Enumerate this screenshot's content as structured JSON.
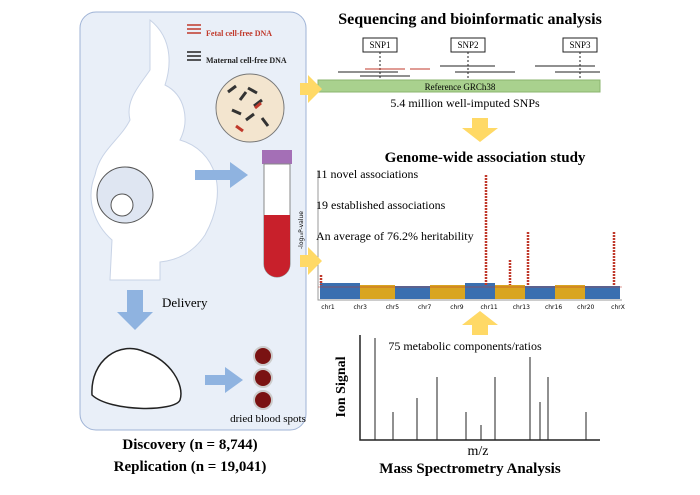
{
  "left": {
    "legend": {
      "fetal": "Fetal cell-free DNA",
      "maternal": "Maternal cell-free DNA"
    },
    "delivery": "Delivery",
    "blood_spots": "dried blood spots",
    "discovery": "Discovery (n = 8,744)",
    "replication": "Replication (n = 19,041)"
  },
  "sequencing": {
    "title": "Sequencing and bioinformatic analysis",
    "snps": [
      "SNP1",
      "SNP2",
      "SNP3"
    ],
    "reference": "Reference GRCh38",
    "caption": "5.4 million well-imputed SNPs"
  },
  "gwas": {
    "title": "Genome-wide association study",
    "notes": [
      "11 novel associations",
      "19 established associations",
      "An average of 76.2% heritability"
    ],
    "y_label": "-log₁₀P-value",
    "chromosomes": [
      "chr1",
      "chr3",
      "chr5",
      "chr7",
      "chr9",
      "chr11",
      "chr13",
      "chr16",
      "chr20",
      "chrX"
    ]
  },
  "mass_spec": {
    "caption": "75 metabolic components/ratios",
    "y_label": "Ion Signal",
    "x_label": "m/z",
    "title": "Mass Spectrometry Analysis"
  }
}
